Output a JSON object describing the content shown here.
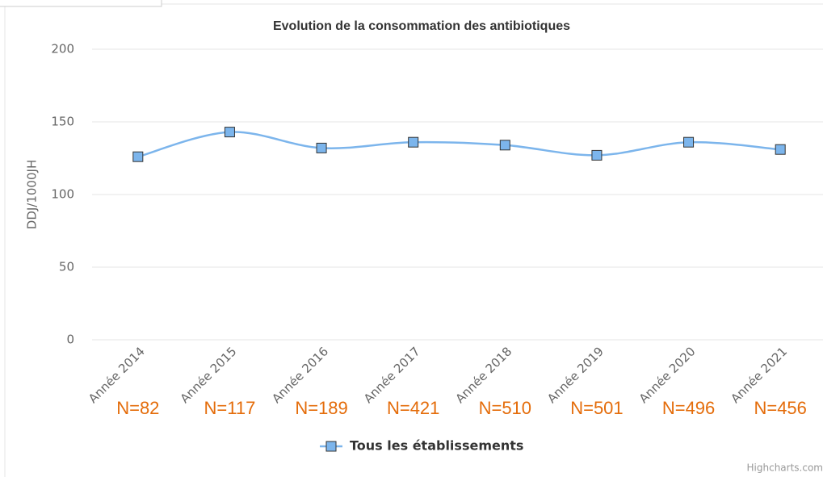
{
  "chart_data": {
    "type": "line",
    "title": "Evolution de la consommation des antibiotiques",
    "y_label": "DDJ/1000JH",
    "categories": [
      "Année 2014",
      "Année 2015",
      "Année 2016",
      "Année 2017",
      "Année 2018",
      "Année 2019",
      "Année 2020",
      "Année 2021"
    ],
    "n_labels": [
      "N=82",
      "N=117",
      "N=189",
      "N=421",
      "N=510",
      "N=501",
      "N=496",
      "N=456"
    ],
    "series": [
      {
        "name": "Tous les établissements",
        "color": "#7cb5ec",
        "values": [
          126,
          143,
          132,
          136,
          134,
          127,
          136,
          131
        ]
      }
    ],
    "ylim": [
      0,
      200
    ],
    "yticks": [
      0,
      50,
      100,
      150,
      200
    ],
    "grid": true,
    "smooth": true,
    "legend": "bottom",
    "credits": "Highcharts.com"
  }
}
